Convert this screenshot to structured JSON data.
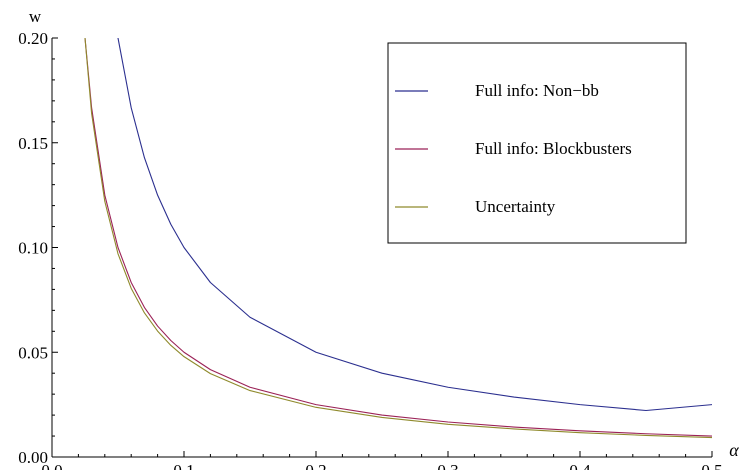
{
  "chart_data": {
    "type": "line",
    "title": "",
    "xlabel": "α",
    "ylabel": "w",
    "xlim": [
      0.0,
      0.5
    ],
    "ylim": [
      0.0,
      0.2
    ],
    "x_ticks": [
      0.0,
      0.1,
      0.2,
      0.3,
      0.4,
      0.5
    ],
    "x_tick_labels": [
      "0.0",
      "0.1",
      "0.2",
      "0.3",
      "0.4",
      "0.5"
    ],
    "y_ticks": [
      0.0,
      0.05,
      0.1,
      0.15,
      0.2
    ],
    "y_tick_labels": [
      "0.00",
      "0.05",
      "0.10",
      "0.15",
      "0.20"
    ],
    "grid": false,
    "legend_position": "top-right",
    "colors": {
      "axis": "#000000",
      "non_bb": "#2b2f8f",
      "blockbusters": "#9b2257",
      "uncertainty": "#8f8a2c"
    },
    "x": [
      0.025,
      0.03,
      0.04,
      0.05,
      0.06,
      0.07,
      0.08,
      0.09,
      0.1,
      0.12,
      0.15,
      0.2,
      0.25,
      0.3,
      0.35,
      0.4,
      0.45,
      0.5
    ],
    "series": [
      {
        "name": "Full info: Non−bb",
        "color": "#2b2f8f",
        "x": [
          0.05,
          0.06,
          0.07,
          0.08,
          0.09,
          0.1,
          0.12,
          0.15,
          0.2,
          0.25,
          0.3,
          0.35,
          0.4,
          0.45,
          0.5
        ],
        "values": [
          0.2,
          0.1667,
          0.1429,
          0.125,
          0.1111,
          0.1,
          0.0833,
          0.0667,
          0.05,
          0.04,
          0.0333,
          0.0286,
          0.025,
          0.0222,
          0.025
        ]
      },
      {
        "name": "Full info: Blockbusters",
        "color": "#9b2257",
        "x": [
          0.025,
          0.03,
          0.04,
          0.05,
          0.06,
          0.07,
          0.08,
          0.09,
          0.1,
          0.12,
          0.15,
          0.2,
          0.25,
          0.3,
          0.35,
          0.4,
          0.45,
          0.5
        ],
        "values": [
          0.2,
          0.1667,
          0.125,
          0.1,
          0.0833,
          0.0714,
          0.0625,
          0.0556,
          0.05,
          0.0417,
          0.0333,
          0.025,
          0.02,
          0.0167,
          0.0143,
          0.0125,
          0.0111,
          0.01
        ]
      },
      {
        "name": "Uncertainty",
        "color": "#8f8a2c",
        "x": [
          0.025,
          0.03,
          0.04,
          0.05,
          0.06,
          0.07,
          0.08,
          0.09,
          0.1,
          0.12,
          0.15,
          0.2,
          0.25,
          0.3,
          0.35,
          0.4,
          0.45,
          0.5
        ],
        "values": [
          0.2,
          0.164,
          0.122,
          0.097,
          0.0805,
          0.0688,
          0.0601,
          0.0533,
          0.0479,
          0.0398,
          0.0317,
          0.0237,
          0.0189,
          0.0156,
          0.0134,
          0.0116,
          0.0103,
          0.0093
        ]
      }
    ]
  }
}
